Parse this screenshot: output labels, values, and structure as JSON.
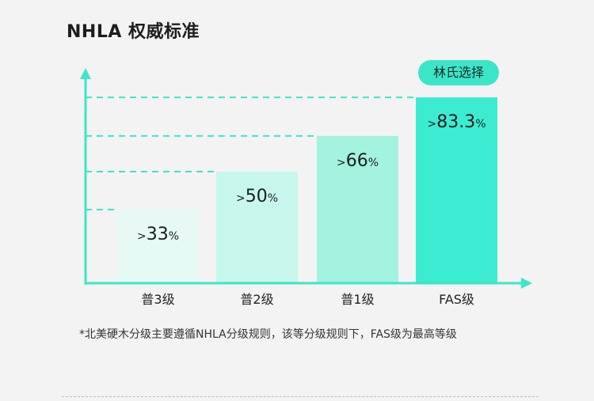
{
  "title": "NHLA 权威标准",
  "badge": "林氏选择",
  "footnote": "*北美硬木分级主要遵循NHLA分级规则，该等分级规则下，FAS级为最高等级",
  "colors": {
    "axis": "#3ce6c6",
    "bars": [
      "#e6f9f5",
      "#c7f7ec",
      "#a2f3df",
      "#3cecd0"
    ]
  },
  "chart_data": {
    "type": "bar",
    "categories": [
      "普3级",
      "普2级",
      "普1级",
      "FAS级"
    ],
    "values": [
      33,
      50,
      66,
      83.3
    ],
    "value_prefix": ">",
    "value_suffix": "%",
    "ylim": [
      0,
      100
    ],
    "grid": "dashed reference lines at each bar top",
    "highlight": "FAS级"
  }
}
